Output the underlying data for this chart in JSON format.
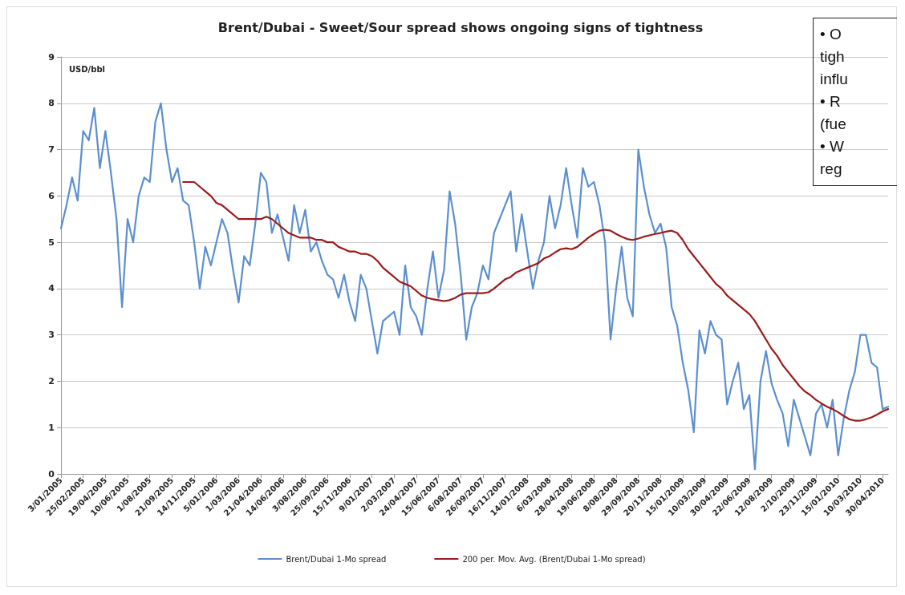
{
  "chart_data": {
    "type": "line",
    "title": "Brent/Dubai - Sweet/Sour spread shows ongoing signs of tightness",
    "ylabel": "USD/bbl",
    "annotations": [
      "• O\ntigh\ninflu\n• R\n(fue\n• W\nreg"
    ],
    "categories": [
      "3/01/2005",
      null,
      null,
      null,
      "25/02/2005",
      null,
      null,
      null,
      "19/04/2005",
      null,
      null,
      null,
      "10/06/2005",
      null,
      null,
      null,
      "1/08/2005",
      null,
      null,
      null,
      "21/09/2005",
      null,
      null,
      null,
      "14/11/2005",
      null,
      null,
      null,
      "5/01/2006",
      null,
      null,
      null,
      "1/03/2006",
      null,
      null,
      null,
      "21/04/2006",
      null,
      null,
      null,
      "14/06/2006",
      null,
      null,
      null,
      "3/08/2006",
      null,
      null,
      null,
      "25/09/2006",
      null,
      null,
      null,
      "15/11/2006",
      null,
      null,
      null,
      "9/01/2007",
      null,
      null,
      null,
      "2/03/2007",
      null,
      null,
      null,
      "24/04/2007",
      null,
      null,
      null,
      "15/06/2007",
      null,
      null,
      null,
      "6/08/2007",
      null,
      null,
      null,
      "26/09/2007",
      null,
      null,
      null,
      "16/11/2007",
      null,
      null,
      null,
      "14/01/2008",
      null,
      null,
      null,
      "6/03/2008",
      null,
      null,
      null,
      "28/04/2008",
      null,
      null,
      null,
      "19/06/2008",
      null,
      null,
      null,
      "8/08/2008",
      null,
      null,
      null,
      "29/09/2008",
      null,
      null,
      null,
      "20/11/2008",
      null,
      null,
      null,
      "15/01/2009",
      null,
      null,
      null,
      "10/03/2009",
      null,
      null,
      null,
      "30/04/2009",
      null,
      null,
      null,
      "22/06/2009",
      null,
      null,
      null,
      "12/08/2009",
      null,
      null,
      null,
      "2/10/2009",
      null,
      null,
      null,
      "23/11/2009",
      null,
      null,
      null,
      "15/01/2010",
      null,
      null,
      null,
      "10/03/2010",
      null,
      null,
      null,
      "30/04/2010",
      null
    ],
    "series": [
      {
        "name": "Brent/Dubai 1-Mo spread",
        "color": "#5b8fd0",
        "values": [
          5.3,
          5.8,
          6.4,
          5.9,
          7.4,
          7.2,
          7.9,
          6.6,
          7.4,
          6.5,
          5.5,
          3.6,
          5.5,
          5.0,
          6.0,
          6.4,
          6.3,
          7.6,
          8.0,
          7.0,
          6.3,
          6.6,
          5.9,
          5.8,
          5.0,
          4.0,
          4.9,
          4.5,
          5.0,
          5.5,
          5.2,
          4.4,
          3.7,
          4.7,
          4.5,
          5.4,
          6.5,
          6.3,
          5.2,
          5.6,
          5.1,
          4.6,
          5.8,
          5.2,
          5.7,
          4.8,
          5.0,
          4.6,
          4.3,
          4.2,
          3.8,
          4.3,
          3.7,
          3.3,
          4.3,
          4.0,
          3.3,
          2.6,
          3.3,
          3.4,
          3.5,
          3.0,
          4.5,
          3.6,
          3.4,
          3.0,
          4.0,
          4.8,
          3.8,
          4.4,
          6.1,
          5.4,
          4.3,
          2.9,
          3.6,
          3.9,
          4.5,
          4.2,
          5.2,
          5.5,
          5.8,
          6.1,
          4.8,
          5.6,
          4.8,
          4.0,
          4.6,
          5.0,
          6.0,
          5.3,
          5.8,
          6.6,
          5.8,
          5.1,
          6.6,
          6.2,
          6.3,
          5.8,
          5.0,
          2.9,
          4.0,
          4.9,
          3.8,
          3.4,
          7.0,
          6.2,
          5.6,
          5.2,
          5.4,
          4.9,
          3.6,
          3.2,
          2.4,
          1.8,
          0.9,
          3.1,
          2.6,
          3.3,
          3.0,
          2.9,
          1.5,
          2.0,
          2.4,
          1.4,
          1.7,
          0.1,
          2.0,
          2.65,
          1.95,
          1.6,
          1.3,
          0.6,
          1.6,
          1.2,
          0.8,
          0.4,
          1.3,
          1.5,
          1.0,
          1.6,
          0.4,
          1.2,
          1.8,
          2.2,
          3.0,
          3.0,
          2.4,
          2.3,
          1.4,
          1.45
        ]
      },
      {
        "name": "200 per. Mov. Avg. (Brent/Dubai 1-Mo spread)",
        "color": "#9b1b1b",
        "values": [
          null,
          null,
          null,
          null,
          null,
          null,
          null,
          null,
          null,
          null,
          null,
          null,
          null,
          null,
          null,
          null,
          null,
          null,
          null,
          null,
          null,
          null,
          6.3,
          6.3,
          6.3,
          6.2,
          6.1,
          6.0,
          5.85,
          5.8,
          5.7,
          5.6,
          5.5,
          5.5,
          5.5,
          5.5,
          5.5,
          5.55,
          5.5,
          5.4,
          5.3,
          5.2,
          5.15,
          5.1,
          5.1,
          5.1,
          5.05,
          5.05,
          5.0,
          5.0,
          4.9,
          4.85,
          4.8,
          4.8,
          4.75,
          4.75,
          4.7,
          4.6,
          4.45,
          4.35,
          4.25,
          4.15,
          4.1,
          4.05,
          3.95,
          3.85,
          3.8,
          3.77,
          3.75,
          3.73,
          3.75,
          3.8,
          3.87,
          3.9,
          3.9,
          3.9,
          3.9,
          3.92,
          4.0,
          4.1,
          4.2,
          4.25,
          4.35,
          4.4,
          4.45,
          4.5,
          4.55,
          4.65,
          4.7,
          4.78,
          4.85,
          4.87,
          4.85,
          4.9,
          5.0,
          5.1,
          5.18,
          5.25,
          5.27,
          5.25,
          5.18,
          5.12,
          5.07,
          5.05,
          5.08,
          5.12,
          5.15,
          5.18,
          5.2,
          5.23,
          5.25,
          5.2,
          5.05,
          4.85,
          4.7,
          4.55,
          4.4,
          4.25,
          4.1,
          4.0,
          3.85,
          3.75,
          3.65,
          3.55,
          3.45,
          3.3,
          3.1,
          2.9,
          2.7,
          2.55,
          2.35,
          2.2,
          2.05,
          1.9,
          1.78,
          1.7,
          1.6,
          1.52,
          1.45,
          1.4,
          1.33,
          1.25,
          1.18,
          1.15,
          1.15,
          1.18,
          1.22,
          1.28,
          1.35,
          1.4
        ]
      }
    ],
    "ylim": [
      0,
      9
    ],
    "yticks": [
      0,
      1,
      2,
      3,
      4,
      5,
      6,
      7,
      8,
      9
    ],
    "grid": "y",
    "legend": "bottom",
    "marker": "none",
    "line_style": "solid"
  }
}
